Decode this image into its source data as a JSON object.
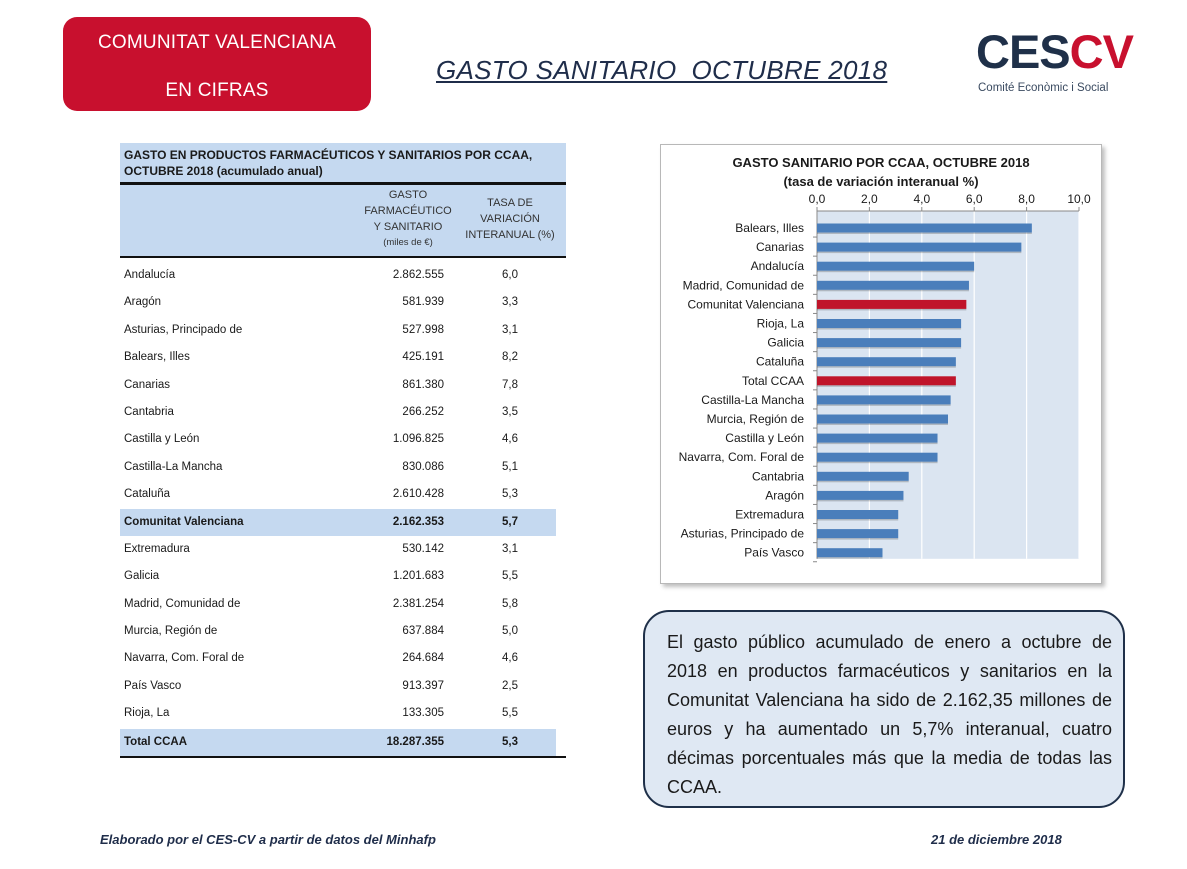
{
  "header": {
    "badge_line1": "COMUNITAT VALENCIANA",
    "badge_line2": "EN CIFRAS",
    "title": "GASTO SANITARIO  OCTUBRE 2018",
    "logo_ces": "CES",
    "logo_cv": "CV",
    "logo_sub": "Comité Econòmic i Social",
    "brand_color": "#c8102e",
    "navy_color": "#1f3049"
  },
  "table": {
    "title": "GASTO EN PRODUCTOS FARMACÉUTICOS Y SANITARIOS POR CCAA, OCTUBRE 2018 (acumulado anual)",
    "col1_lines": [
      "GASTO",
      "FARMACÉUTICO",
      "Y SANITARIO"
    ],
    "col1_unit": "(miles de €)",
    "col2_lines": [
      "TASA DE",
      "VARIACIÓN",
      "INTERANUAL (%)"
    ],
    "rows": [
      {
        "name": "Andalucía",
        "value": "2.862.555",
        "rate": "6,0"
      },
      {
        "name": "Aragón",
        "value": "581.939",
        "rate": "3,3"
      },
      {
        "name": "Asturias, Principado de",
        "value": "527.998",
        "rate": "3,1"
      },
      {
        "name": "Balears, Illes",
        "value": "425.191",
        "rate": "8,2"
      },
      {
        "name": "Canarias",
        "value": "861.380",
        "rate": "7,8"
      },
      {
        "name": "Cantabria",
        "value": "266.252",
        "rate": "3,5"
      },
      {
        "name": "Castilla y León",
        "value": "1.096.825",
        "rate": "4,6"
      },
      {
        "name": "Castilla-La Mancha",
        "value": "830.086",
        "rate": "5,1"
      },
      {
        "name": "Cataluña",
        "value": "2.610.428",
        "rate": "5,3"
      },
      {
        "name": "Comunitat Valenciana",
        "value": "2.162.353",
        "rate": "5,7",
        "highlight": true
      },
      {
        "name": "Extremadura",
        "value": "530.142",
        "rate": "3,1"
      },
      {
        "name": "Galicia",
        "value": "1.201.683",
        "rate": "5,5"
      },
      {
        "name": "Madrid, Comunidad de",
        "value": "2.381.254",
        "rate": "5,8"
      },
      {
        "name": "Murcia, Región de",
        "value": "637.884",
        "rate": "5,0"
      },
      {
        "name": "Navarra, Com. Foral de",
        "value": "264.684",
        "rate": "4,6"
      },
      {
        "name": "País Vasco",
        "value": "913.397",
        "rate": "2,5"
      },
      {
        "name": "Rioja, La",
        "value": "133.305",
        "rate": "5,5"
      },
      {
        "name": "Total CCAA",
        "value": "18.287.355",
        "rate": "5,3",
        "highlight": true,
        "total": true
      }
    ]
  },
  "chart_data": {
    "type": "bar",
    "orientation": "horizontal",
    "title": "GASTO SANITARIO POR CCAA, OCTUBRE 2018",
    "subtitle": "(tasa de variación interanual %)",
    "categories": [
      "Balears, Illes",
      "Canarias",
      "Andalucía",
      "Madrid, Comunidad de",
      "Comunitat Valenciana",
      "Rioja, La",
      "Galicia",
      "Cataluña",
      "Total CCAA",
      "Castilla-La Mancha",
      "Murcia, Región de",
      "Castilla y León",
      "Navarra, Com. Foral de",
      "Cantabria",
      "Aragón",
      "Extremadura",
      "Asturias, Principado de",
      "País Vasco"
    ],
    "values": [
      8.2,
      7.8,
      6.0,
      5.8,
      5.7,
      5.5,
      5.5,
      5.3,
      5.3,
      5.1,
      5.0,
      4.6,
      4.6,
      3.5,
      3.3,
      3.1,
      3.1,
      2.5
    ],
    "highlighted": [
      "Comunitat Valenciana",
      "Total CCAA"
    ],
    "xlim": [
      0,
      10
    ],
    "xticks": [
      "0,0",
      "2,0",
      "4,0",
      "6,0",
      "8,0",
      "10,0"
    ],
    "xtick_values": [
      0,
      2,
      4,
      6,
      8,
      10
    ],
    "axis_position": "top",
    "grid": true,
    "bar_color": "#4a7ebb",
    "highlight_color": "#c0142a",
    "plot_bg": "#dbe5f1"
  },
  "note": {
    "text": "El gasto público acumulado de enero a octubre de 2018 en productos farmacéuticos y sanitarios en la Comunitat Valenciana ha sido de 2.162,35 millones de euros y ha aumentado un 5,7% interanual, cuatro décimas porcentuales más que la media de todas las CCAA."
  },
  "footer": {
    "source": "Elaborado por el CES-CV a partir de datos del Minhafp",
    "date": "21 de diciembre 2018"
  }
}
